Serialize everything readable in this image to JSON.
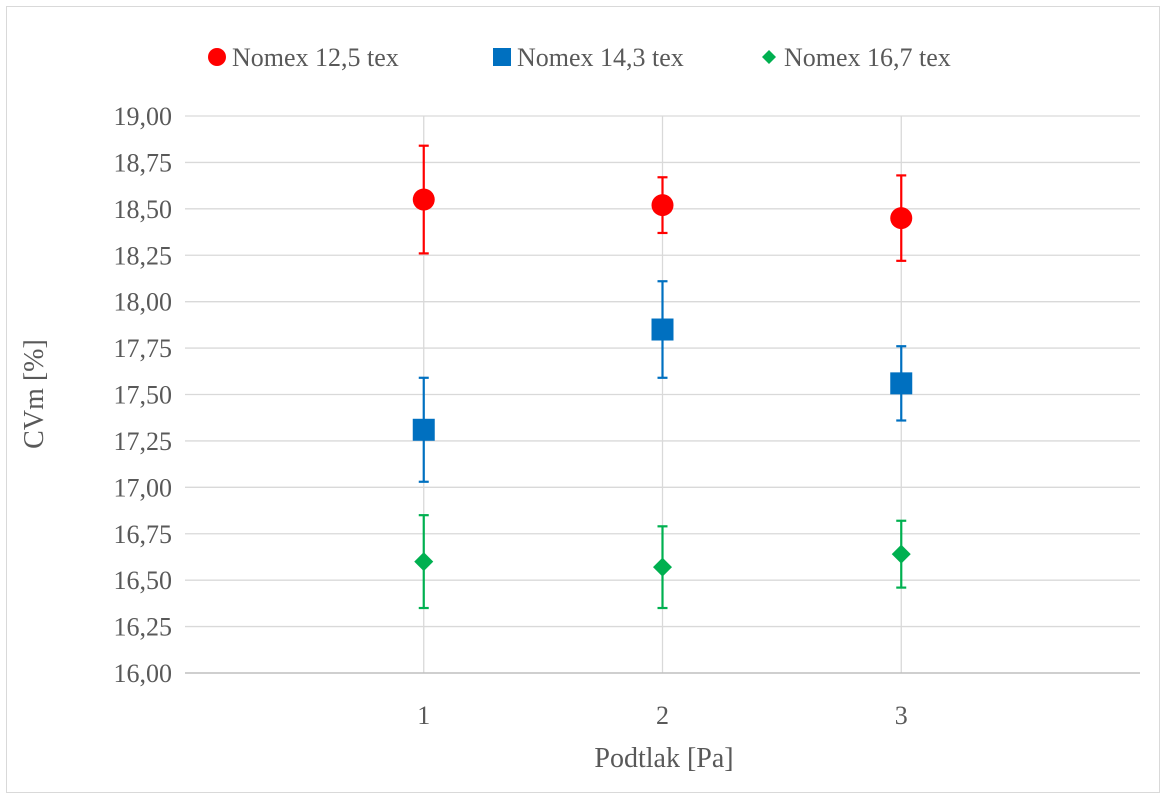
{
  "chart_data": {
    "type": "scatter",
    "xlabel": "Podtlak [Pa]",
    "ylabel": "CVm [%]",
    "x": [
      1,
      2,
      3
    ],
    "xticks": [
      "1",
      "2",
      "3"
    ],
    "xlim": [
      0,
      4
    ],
    "ylim": [
      16.0,
      19.0
    ],
    "yticks": [
      "16,00",
      "16,25",
      "16,50",
      "16,75",
      "17,00",
      "17,25",
      "17,50",
      "17,75",
      "18,00",
      "18,25",
      "18,50",
      "18,75",
      "19,00"
    ],
    "grid": true,
    "legend_position": "top",
    "series": [
      {
        "name": "Nomex 12,5 tex",
        "marker": "circle",
        "color": "#ff0000",
        "values": [
          18.55,
          18.52,
          18.45
        ],
        "error_low": [
          18.26,
          18.37,
          18.22
        ],
        "error_high": [
          18.84,
          18.67,
          18.68
        ]
      },
      {
        "name": "Nomex 14,3 tex",
        "marker": "square",
        "color": "#0070c0",
        "values": [
          17.31,
          17.85,
          17.56
        ],
        "error_low": [
          17.03,
          17.59,
          17.36
        ],
        "error_high": [
          17.59,
          18.11,
          17.76
        ]
      },
      {
        "name": "Nomex 16,7 tex",
        "marker": "diamond",
        "color": "#00b050",
        "values": [
          16.6,
          16.57,
          16.64
        ],
        "error_low": [
          16.35,
          16.35,
          16.46
        ],
        "error_high": [
          16.85,
          16.79,
          16.82
        ]
      }
    ]
  }
}
